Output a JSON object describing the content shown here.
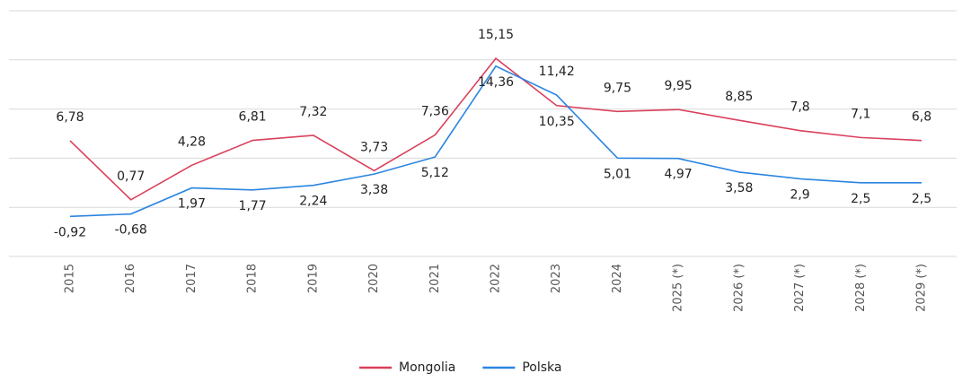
{
  "chart_data": {
    "type": "line",
    "categories": [
      "2015",
      "2016",
      "2017",
      "2018",
      "2019",
      "2020",
      "2021",
      "2022",
      "2023",
      "2024",
      "2025 (*)",
      "2026 (*)",
      "2027 (*)",
      "2028 (*)",
      "2029 (*)"
    ],
    "series": [
      {
        "name": "Mongolia",
        "color": "#d9405a",
        "values": [
          6.78,
          0.77,
          4.28,
          6.81,
          7.32,
          3.73,
          7.36,
          15.15,
          10.35,
          9.75,
          9.95,
          8.85,
          7.8,
          7.1,
          6.8
        ],
        "value_labels": [
          "6,78",
          "0,77",
          "4,28",
          "6,81",
          "7,32",
          "3,73",
          "7,36",
          "15,15",
          "10,35",
          "9,75",
          "9,95",
          "8,85",
          "7,8",
          "7,1",
          "6,8"
        ]
      },
      {
        "name": "Polska",
        "color": "#2b85e0",
        "values": [
          -0.92,
          -0.68,
          1.97,
          1.77,
          2.24,
          3.38,
          5.12,
          14.36,
          11.42,
          5.01,
          4.97,
          3.58,
          2.9,
          2.5,
          2.5
        ],
        "value_labels": [
          "-0,92",
          "-0,68",
          "1,97",
          "1,77",
          "2,24",
          "3,38",
          "5,12",
          "14,36",
          "11,42",
          "5,01",
          "4,97",
          "3,58",
          "2,9",
          "2,5",
          "2,5"
        ]
      }
    ],
    "ylim": [
      -5,
      20
    ],
    "yticks": [
      -5,
      0,
      5,
      10,
      15,
      20
    ],
    "grid": true,
    "legend": "bottom"
  }
}
